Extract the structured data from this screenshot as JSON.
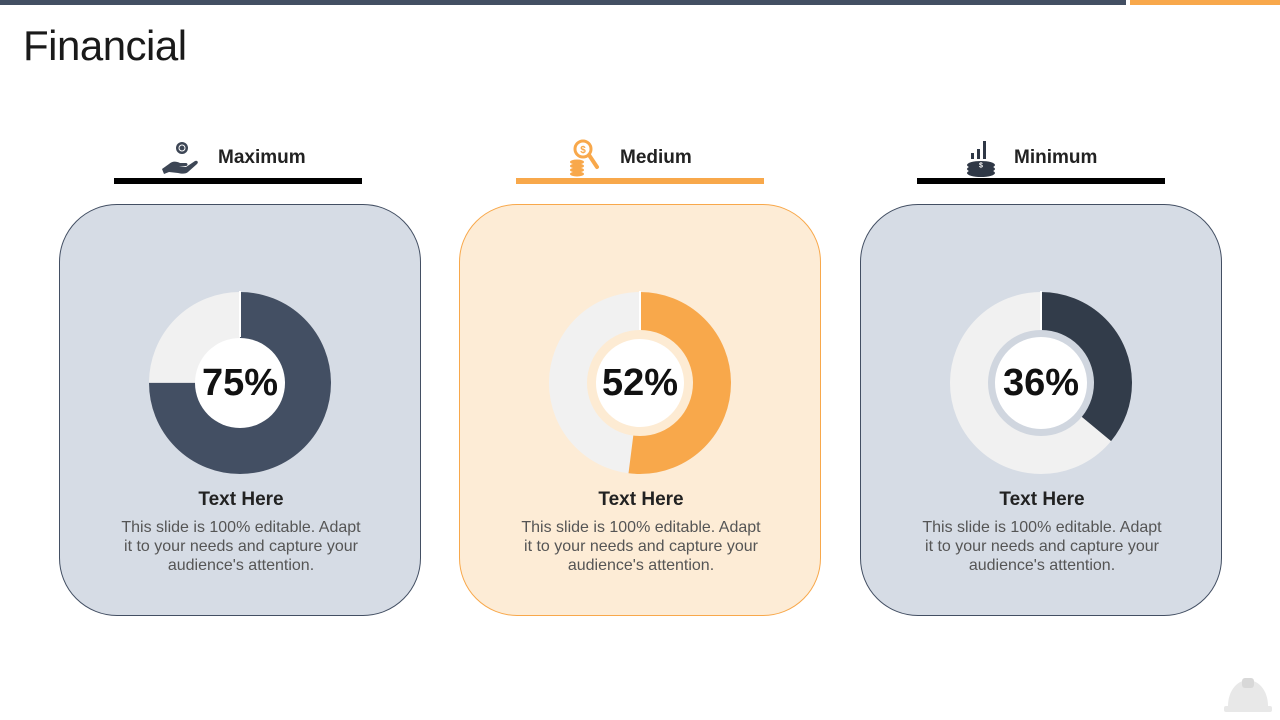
{
  "title": "Financial",
  "colors": {
    "dark": "#434f63",
    "accent": "#f8a84b",
    "track": "#f1f1f1",
    "card_blue": "#d6dce5",
    "card_orange": "#fdecd6"
  },
  "columns": [
    {
      "label": "Maximum",
      "icon": "hand-coin-icon",
      "value_label": "75%",
      "card_title": "Text Here",
      "card_desc": "This slide is 100% editable. Adapt it to your needs and capture your audience's attention."
    },
    {
      "label": "Medium",
      "icon": "coins-magnifier-icon",
      "value_label": "52%",
      "card_title": "Text Here",
      "card_desc": "This slide is 100% editable. Adapt it to your needs and capture your audience's attention."
    },
    {
      "label": "Minimum",
      "icon": "coins-chart-icon",
      "value_label": "36%",
      "card_title": "Text Here",
      "card_desc": "This slide is 100% editable. Adapt it to your needs and capture your audience's attention."
    }
  ],
  "chart_data": [
    {
      "type": "pie",
      "categories": [
        "Maximum",
        ""
      ],
      "values": [
        75,
        25
      ],
      "colors": [
        "#434f63",
        "#f1f1f1"
      ]
    },
    {
      "type": "pie",
      "categories": [
        "Medium",
        ""
      ],
      "values": [
        52,
        48
      ],
      "colors": [
        "#f8a84b",
        "#f1f1f1"
      ]
    },
    {
      "type": "pie",
      "categories": [
        "Minimum",
        ""
      ],
      "values": [
        36,
        64
      ],
      "colors": [
        "#323c4a",
        "#f1f1f1"
      ]
    }
  ]
}
